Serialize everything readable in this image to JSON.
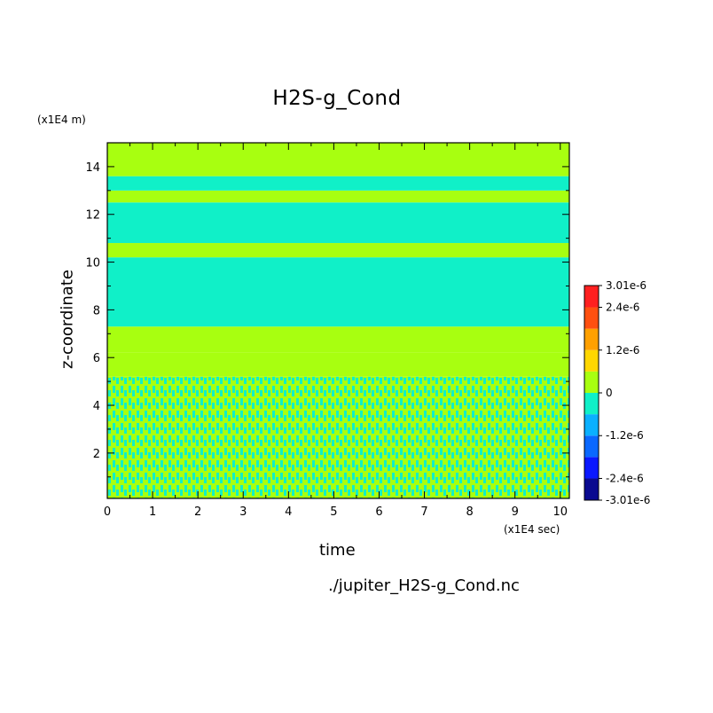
{
  "chart_data": {
    "type": "heatmap",
    "title": "H2S-g_Cond",
    "xlabel": "time",
    "x_unit": "(x1E4 sec)",
    "ylabel": "z-coordinate",
    "y_unit": "(x1E4 m)",
    "x_ticks": [
      0,
      1,
      2,
      3,
      4,
      5,
      6,
      7,
      8,
      9,
      10
    ],
    "y_ticks": [
      2,
      4,
      6,
      8,
      10,
      12,
      14
    ],
    "xlim": [
      0,
      10.2
    ],
    "ylim": [
      0.1,
      15
    ],
    "colorbar": {
      "tick_labels": [
        "3.01e-6",
        "2.4e-6",
        "1.2e-6",
        "0",
        "-1.2e-6",
        "-2.4e-6",
        "-3.01e-6"
      ],
      "tick_values": [
        3.01e-06,
        2.4e-06,
        1.2e-06,
        0,
        -1.2e-06,
        -2.4e-06,
        -3.01e-06
      ],
      "levels": [
        -3.01e-06,
        -2.4e-06,
        -1.8e-06,
        -1.2e-06,
        -6e-07,
        0,
        6e-07,
        1.2e-06,
        1.8e-06,
        2.4e-06,
        3.01e-06
      ],
      "colors": [
        "#0a0a90",
        "#0a18ff",
        "#0a68ff",
        "#0ab0ff",
        "#10f0c8",
        "#a8ff10",
        "#ffd700",
        "#ffa000",
        "#ff5010",
        "#ff2020"
      ]
    },
    "bands": [
      {
        "z": [
          0.1,
          5.2
        ],
        "value": 0.0,
        "pattern": "mixed"
      },
      {
        "z": [
          5.2,
          6.2
        ],
        "value": 3e-07
      },
      {
        "z": [
          6.2,
          7.3
        ],
        "value": 3e-07
      },
      {
        "z": [
          7.3,
          10.2
        ],
        "value": -3e-07
      },
      {
        "z": [
          10.2,
          10.8
        ],
        "value": 3e-07
      },
      {
        "z": [
          10.8,
          12.5
        ],
        "value": -3e-07
      },
      {
        "z": [
          12.5,
          13.0
        ],
        "value": 3e-07
      },
      {
        "z": [
          13.0,
          13.6
        ],
        "value": -3e-07
      },
      {
        "z": [
          13.6,
          15.0
        ],
        "value": 3e-07
      }
    ],
    "source_file": "./jupiter_H2S-g_Cond.nc"
  },
  "colors": {
    "zero_positive": "#a8ff10",
    "zero_negative": "#10f0c8",
    "frame": "#000000"
  }
}
